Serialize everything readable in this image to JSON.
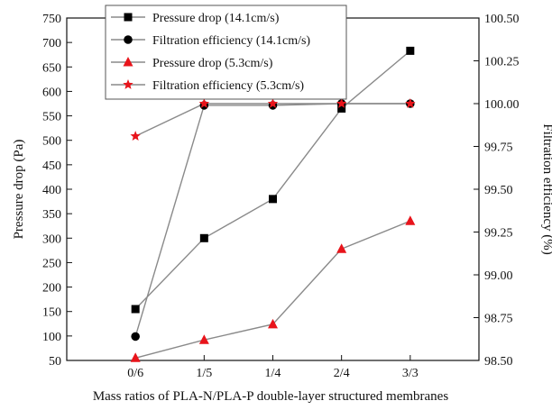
{
  "chart_data": {
    "type": "line",
    "categories": [
      "0/6",
      "1/5",
      "1/4",
      "2/4",
      "3/3"
    ],
    "xlabel": "Mass ratios of PLA-N/PLA-P double-layer structured membranes",
    "ylabel_left": "Pressure drop (Pa)",
    "ylabel_right": "Filtration efficiency (%)",
    "ylim_left": [
      50,
      750
    ],
    "yticks_left": [
      50,
      100,
      150,
      200,
      250,
      300,
      350,
      400,
      450,
      500,
      550,
      600,
      650,
      700,
      750
    ],
    "ylim_right": [
      98.5,
      100.5
    ],
    "yticks_right": [
      "98.50",
      "98.75",
      "99.00",
      "99.25",
      "99.50",
      "99.75",
      "100.00",
      "100.25",
      "100.50"
    ],
    "grid": false,
    "legend_position": "top-left",
    "series": [
      {
        "name": "Pressure drop (14.1cm/s)",
        "axis": "left",
        "marker": "square",
        "color": "#000000",
        "line_color": "#8a8a8a",
        "values": [
          155,
          300,
          380,
          565,
          683
        ]
      },
      {
        "name": "Filtration efficiency (14.1cm/s)",
        "axis": "right",
        "marker": "circle",
        "color": "#000000",
        "line_color": "#8a8a8a",
        "values": [
          98.64,
          99.99,
          99.99,
          100.0,
          100.0
        ]
      },
      {
        "name": "Pressure drop (5.3cm/s)",
        "axis": "left",
        "marker": "triangle",
        "color": "#e8141b",
        "line_color": "#8a8a8a",
        "values": [
          55,
          92,
          124,
          278,
          335
        ]
      },
      {
        "name": "Filtration efficiency (5.3cm/s)",
        "axis": "right",
        "marker": "star",
        "color": "#e8141b",
        "line_color": "#8a8a8a",
        "values": [
          99.81,
          100.0,
          100.0,
          100.0,
          100.0
        ]
      }
    ]
  }
}
